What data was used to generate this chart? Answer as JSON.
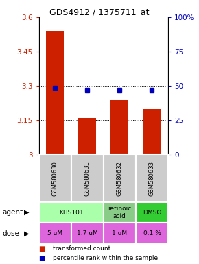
{
  "title": "GDS4912 / 1375711_at",
  "samples": [
    "GSM580630",
    "GSM580631",
    "GSM580632",
    "GSM580633"
  ],
  "bar_values": [
    3.54,
    3.16,
    3.24,
    3.2
  ],
  "dot_values": [
    3.29,
    3.28,
    3.28,
    3.28
  ],
  "ylim_left": [
    3.0,
    3.6
  ],
  "ylim_right": [
    0,
    100
  ],
  "yticks_left": [
    3.0,
    3.15,
    3.3,
    3.45,
    3.6
  ],
  "yticks_left_labels": [
    "3",
    "3.15",
    "3.3",
    "3.45",
    "3.6"
  ],
  "yticks_right": [
    0,
    25,
    50,
    75,
    100
  ],
  "yticks_right_labels": [
    "0",
    "25",
    "50",
    "75",
    "100%"
  ],
  "gridlines": [
    3.15,
    3.3,
    3.45
  ],
  "bar_color": "#cc2000",
  "dot_color": "#0000bb",
  "dose_labels": [
    "5 uM",
    "1.7 uM",
    "1 uM",
    "0.1 %"
  ],
  "dose_color": "#dd66dd",
  "sample_bg_color": "#cccccc",
  "legend_bar_label": "transformed count",
  "legend_dot_label": "percentile rank within the sample",
  "agent_spans": [
    [
      0,
      2,
      "KHS101",
      "#aaffaa"
    ],
    [
      2,
      3,
      "retinoic\nacid",
      "#88cc88"
    ],
    [
      3,
      4,
      "DMSO",
      "#33cc33"
    ]
  ]
}
